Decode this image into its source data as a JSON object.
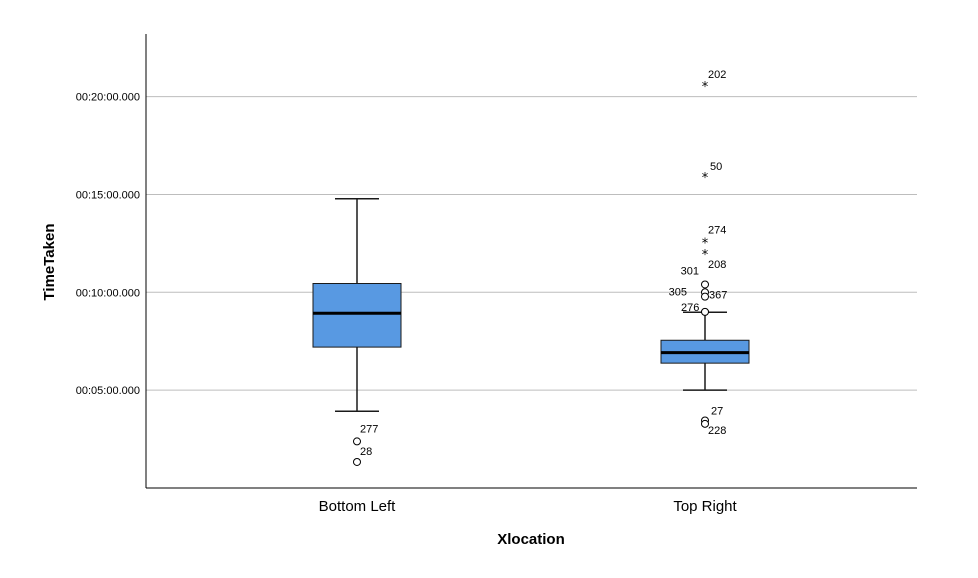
{
  "chart_data": {
    "type": "boxplot",
    "xlabel": "Xlocation",
    "ylabel": "TimeTaken",
    "ylim": [
      0,
      23.2
    ],
    "yticks": [
      {
        "value": 5,
        "label": "00:05:00.000"
      },
      {
        "value": 10,
        "label": "00:10:00.000"
      },
      {
        "value": 15,
        "label": "00:15:00.000"
      },
      {
        "value": 20,
        "label": "00:20:00.000"
      }
    ],
    "grid": true,
    "colors": {
      "box_fill": "#5899e2",
      "box_stroke": "#1a1a1a",
      "grid": "#bdbdbd",
      "axis": "#000000"
    },
    "categories": [
      "Bottom Left",
      "Top Right"
    ],
    "boxes": [
      {
        "category": "Bottom Left",
        "whisker_low": 3.92,
        "q1": 7.2,
        "median": 8.93,
        "q3": 10.45,
        "whisker_high": 14.78,
        "outliers": [
          {
            "id": "277",
            "value": 2.38,
            "marker": "circle"
          },
          {
            "id": "28",
            "value": 1.33,
            "marker": "circle"
          }
        ]
      },
      {
        "category": "Top Right",
        "whisker_low": 5.0,
        "q1": 6.38,
        "median": 6.92,
        "q3": 7.55,
        "whisker_high": 8.98,
        "outliers": [
          {
            "id": "202",
            "value": 20.53,
            "marker": "star"
          },
          {
            "id": "50",
            "value": 15.9,
            "marker": "star"
          },
          {
            "id": "274",
            "value": 12.55,
            "marker": "star"
          },
          {
            "id": "208",
            "value": 11.95,
            "marker": "star"
          },
          {
            "id": "301",
            "value": 10.4,
            "marker": "circle"
          },
          {
            "id": "367",
            "value": 10.0,
            "marker": "circle"
          },
          {
            "id": "305",
            "value": 9.78,
            "marker": "circle"
          },
          {
            "id": "276",
            "value": 9.0,
            "marker": "circle"
          },
          {
            "id": "27",
            "value": 3.45,
            "marker": "circle"
          },
          {
            "id": "228",
            "value": 3.28,
            "marker": "circle"
          }
        ]
      }
    ]
  }
}
